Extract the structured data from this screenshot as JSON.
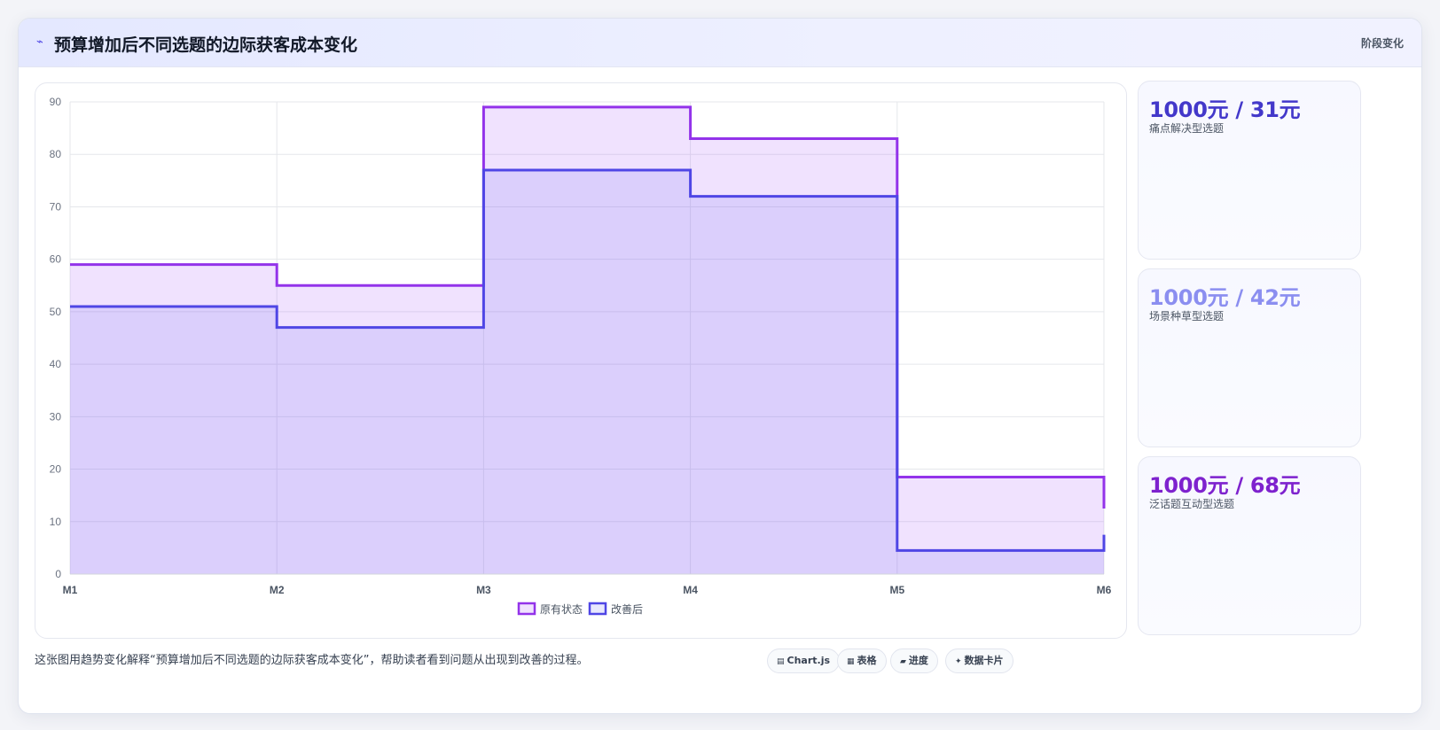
{
  "header": {
    "icon": "sparkline-icon",
    "title": "预算增加后不同选题的边际获客成本变化",
    "stage": "阶段变化"
  },
  "chart_data": {
    "type": "line",
    "stepped": true,
    "fill": true,
    "categories": [
      "M1",
      "M2",
      "M3",
      "M4",
      "M5",
      "M6"
    ],
    "series": [
      {
        "name": "原有状态",
        "values": [
          59,
          55,
          89,
          83,
          18.5,
          12.5
        ],
        "color": "#9333ea"
      },
      {
        "name": "改善后",
        "values": [
          51,
          47,
          77,
          72,
          4.5,
          7.5
        ],
        "color": "#4f46e5"
      }
    ],
    "yticks": [
      0,
      10,
      20,
      30,
      40,
      50,
      60,
      70,
      80,
      90
    ],
    "ylim": [
      0,
      90
    ],
    "grid": true,
    "legend": "bottom"
  },
  "stats": [
    {
      "value": "1000元 / 31元",
      "label": "痛点解决型选题",
      "color": "#4338ca"
    },
    {
      "value": "1000元 / 42元",
      "label": "场景种草型选题",
      "color": "#8b8ef0"
    },
    {
      "value": "1000元 / 68元",
      "label": "泛话题互动型选题",
      "color": "#7e22ce"
    }
  ],
  "footer": {
    "note": "这张图用趋势变化解释“预算增加后不同选题的边际获客成本变化”，帮助读者看到问题从出现到改善的过程。",
    "tags": [
      {
        "icon": "table-icon",
        "glyph": "▤",
        "label": "Chart.js"
      },
      {
        "icon": "grid-icon",
        "glyph": "▦",
        "label": "表格"
      },
      {
        "icon": "progress-icon",
        "glyph": "▰",
        "label": "进度"
      },
      {
        "icon": "sparkle-icon",
        "glyph": "✦",
        "label": "数据卡片"
      }
    ]
  }
}
